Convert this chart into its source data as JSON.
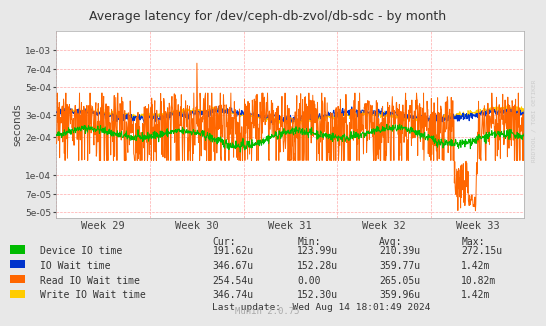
{
  "title": "Average latency for /dev/ceph-db-zvol/db-sdc - by month",
  "ylabel": "seconds",
  "background_color": "#e8e8e8",
  "plot_bg_color": "#ffffff",
  "grid_color": "#ffaaaa",
  "week_labels": [
    "Week 29",
    "Week 30",
    "Week 31",
    "Week 32",
    "Week 33"
  ],
  "ylim_log": [
    4.5e-05,
    0.0014
  ],
  "yticks": [
    5e-05,
    7e-05,
    0.0001,
    0.0002,
    0.0003,
    0.0005,
    0.0007,
    0.001
  ],
  "ytick_labels": [
    "5e-05",
    "7e-05",
    "1e-04",
    "2e-04",
    "3e-04",
    "5e-04",
    "7e-04",
    "1e-03"
  ],
  "legend_items": [
    {
      "label": "Device IO time",
      "color": "#00bb00"
    },
    {
      "label": "IO Wait time",
      "color": "#0033cc"
    },
    {
      "label": "Read IO Wait time",
      "color": "#ff6600"
    },
    {
      "label": "Write IO Wait time",
      "color": "#ffcc00"
    }
  ],
  "stats_header": [
    "Cur:",
    "Min:",
    "Avg:",
    "Max:"
  ],
  "stats": [
    [
      "191.62u",
      "123.99u",
      "210.39u",
      "272.15u"
    ],
    [
      "346.67u",
      "152.28u",
      "359.77u",
      "1.42m"
    ],
    [
      "254.54u",
      "0.00",
      "265.05u",
      "10.82m"
    ],
    [
      "346.74u",
      "152.30u",
      "359.96u",
      "1.42m"
    ]
  ],
  "last_update": "Last update:  Wed Aug 14 18:01:49 2024",
  "munin_version": "Munin 2.0.75",
  "rrdtool_text": "RRDTOOL / TOBI OETIKER",
  "n_points": 1200,
  "seed": 42
}
